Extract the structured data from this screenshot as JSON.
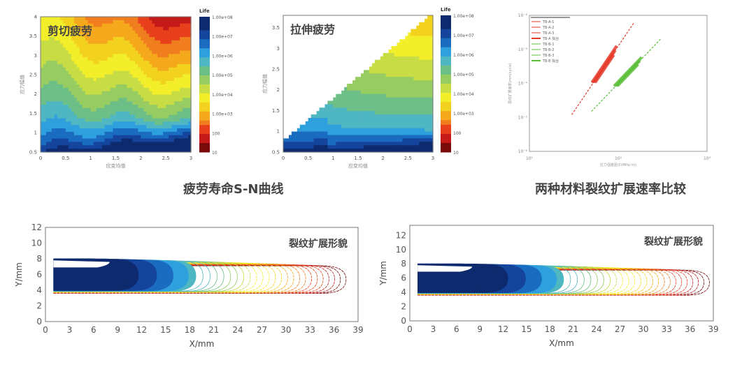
{
  "captions": {
    "sn": "疲劳寿命S-N曲线",
    "rate": "两种材料裂纹扩展速率比较"
  },
  "chart_data": [
    {
      "type": "heatmap",
      "title": "剪切疲劳",
      "xlabel": "应变均值",
      "ylabel": "应力幅值",
      "xlim": [
        0,
        3
      ],
      "ylim": [
        0.5,
        4
      ],
      "xticks": [
        "0",
        "0.5",
        "1",
        "1.5",
        "2",
        "2.5",
        "3"
      ],
      "yticks": [
        "0.5",
        "1",
        "1.5",
        "2",
        "2.5",
        "3",
        "3.5",
        "4"
      ],
      "colorbar": {
        "title": "Life",
        "labels": [
          "1.00e+08",
          "1.00e+07",
          "1.00e+06",
          "1.00e+05",
          "1.00e+04",
          "1.00e+03",
          "100",
          "10"
        ]
      }
    },
    {
      "type": "heatmap",
      "title": "拉伸疲劳",
      "xlabel": "应变均值",
      "ylabel": "应力幅值",
      "xlim": [
        0,
        3
      ],
      "ylim": [
        0.5,
        3.8
      ],
      "xticks": [
        "0",
        "0.5",
        "1",
        "1.5",
        "2",
        "2.5",
        "3"
      ],
      "yticks": [
        "0.5",
        "1",
        "1.5",
        "2",
        "2.5",
        "3",
        "3.5"
      ],
      "colorbar": {
        "title": "Life",
        "labels": [
          "1.00e+08",
          "1.00e+07",
          "1.00e+06",
          "1.00e+05",
          "1.00e+04",
          "1.00e+03",
          "100",
          "10"
        ]
      }
    },
    {
      "type": "line",
      "scale": "loglog",
      "xlabel": "应力强度因子(MPa√m)",
      "ylabel": "裂纹扩展速率(mm/cycle)",
      "xlim": [
        10,
        1000
      ],
      "ylim": [
        1e-06,
        0.01
      ],
      "xticks": [
        "10¹",
        "10²",
        "10³"
      ],
      "yticks": [
        "10⁻²",
        "10⁻³",
        "10⁻⁴",
        "10⁻⁵",
        "10⁻⁶"
      ],
      "legend": [
        "TB-A-1",
        "TB-A-2",
        "TB-A-3",
        "TB-A 拟合",
        "TB-B-1",
        "TB-B-2",
        "TB-B-3",
        "TB-B 拟合"
      ],
      "series": [
        {
          "name": "TB-A 拟合",
          "color": "#e53a2a",
          "x": [
            30,
            150
          ],
          "y": [
            1.2e-05,
            0.006
          ]
        },
        {
          "name": "TB-B 拟合",
          "color": "#5cbf3a",
          "x": [
            50,
            300
          ],
          "y": [
            1.5e-05,
            0.002
          ]
        }
      ]
    },
    {
      "type": "line",
      "title": "裂纹扩展形貌",
      "xlabel": "X/mm",
      "ylabel": "Y/mm",
      "xlim": [
        0,
        39
      ],
      "ylim": [
        0,
        12
      ],
      "xticks": [
        "0",
        "3",
        "6",
        "9",
        "12",
        "15",
        "18",
        "21",
        "24",
        "27",
        "30",
        "33",
        "36",
        "39"
      ],
      "yticks": [
        "0",
        "2",
        "4",
        "6",
        "8",
        "10",
        "12"
      ],
      "front_x": [
        8,
        37
      ],
      "fronts": 34
    },
    {
      "type": "line",
      "title": "裂纹扩展形貌",
      "xlabel": "X/mm",
      "ylabel": "Y/mm",
      "xlim": [
        0,
        39
      ],
      "ylim": [
        0,
        13.4
      ],
      "xticks": [
        "0",
        "3",
        "6",
        "9",
        "12",
        "15",
        "18",
        "21",
        "24",
        "27",
        "30",
        "33",
        "36",
        "39"
      ],
      "yticks": [
        "0",
        "2",
        "4",
        "6",
        "8",
        "10",
        "12"
      ],
      "front_x": [
        9,
        38
      ],
      "fronts": 34
    }
  ]
}
